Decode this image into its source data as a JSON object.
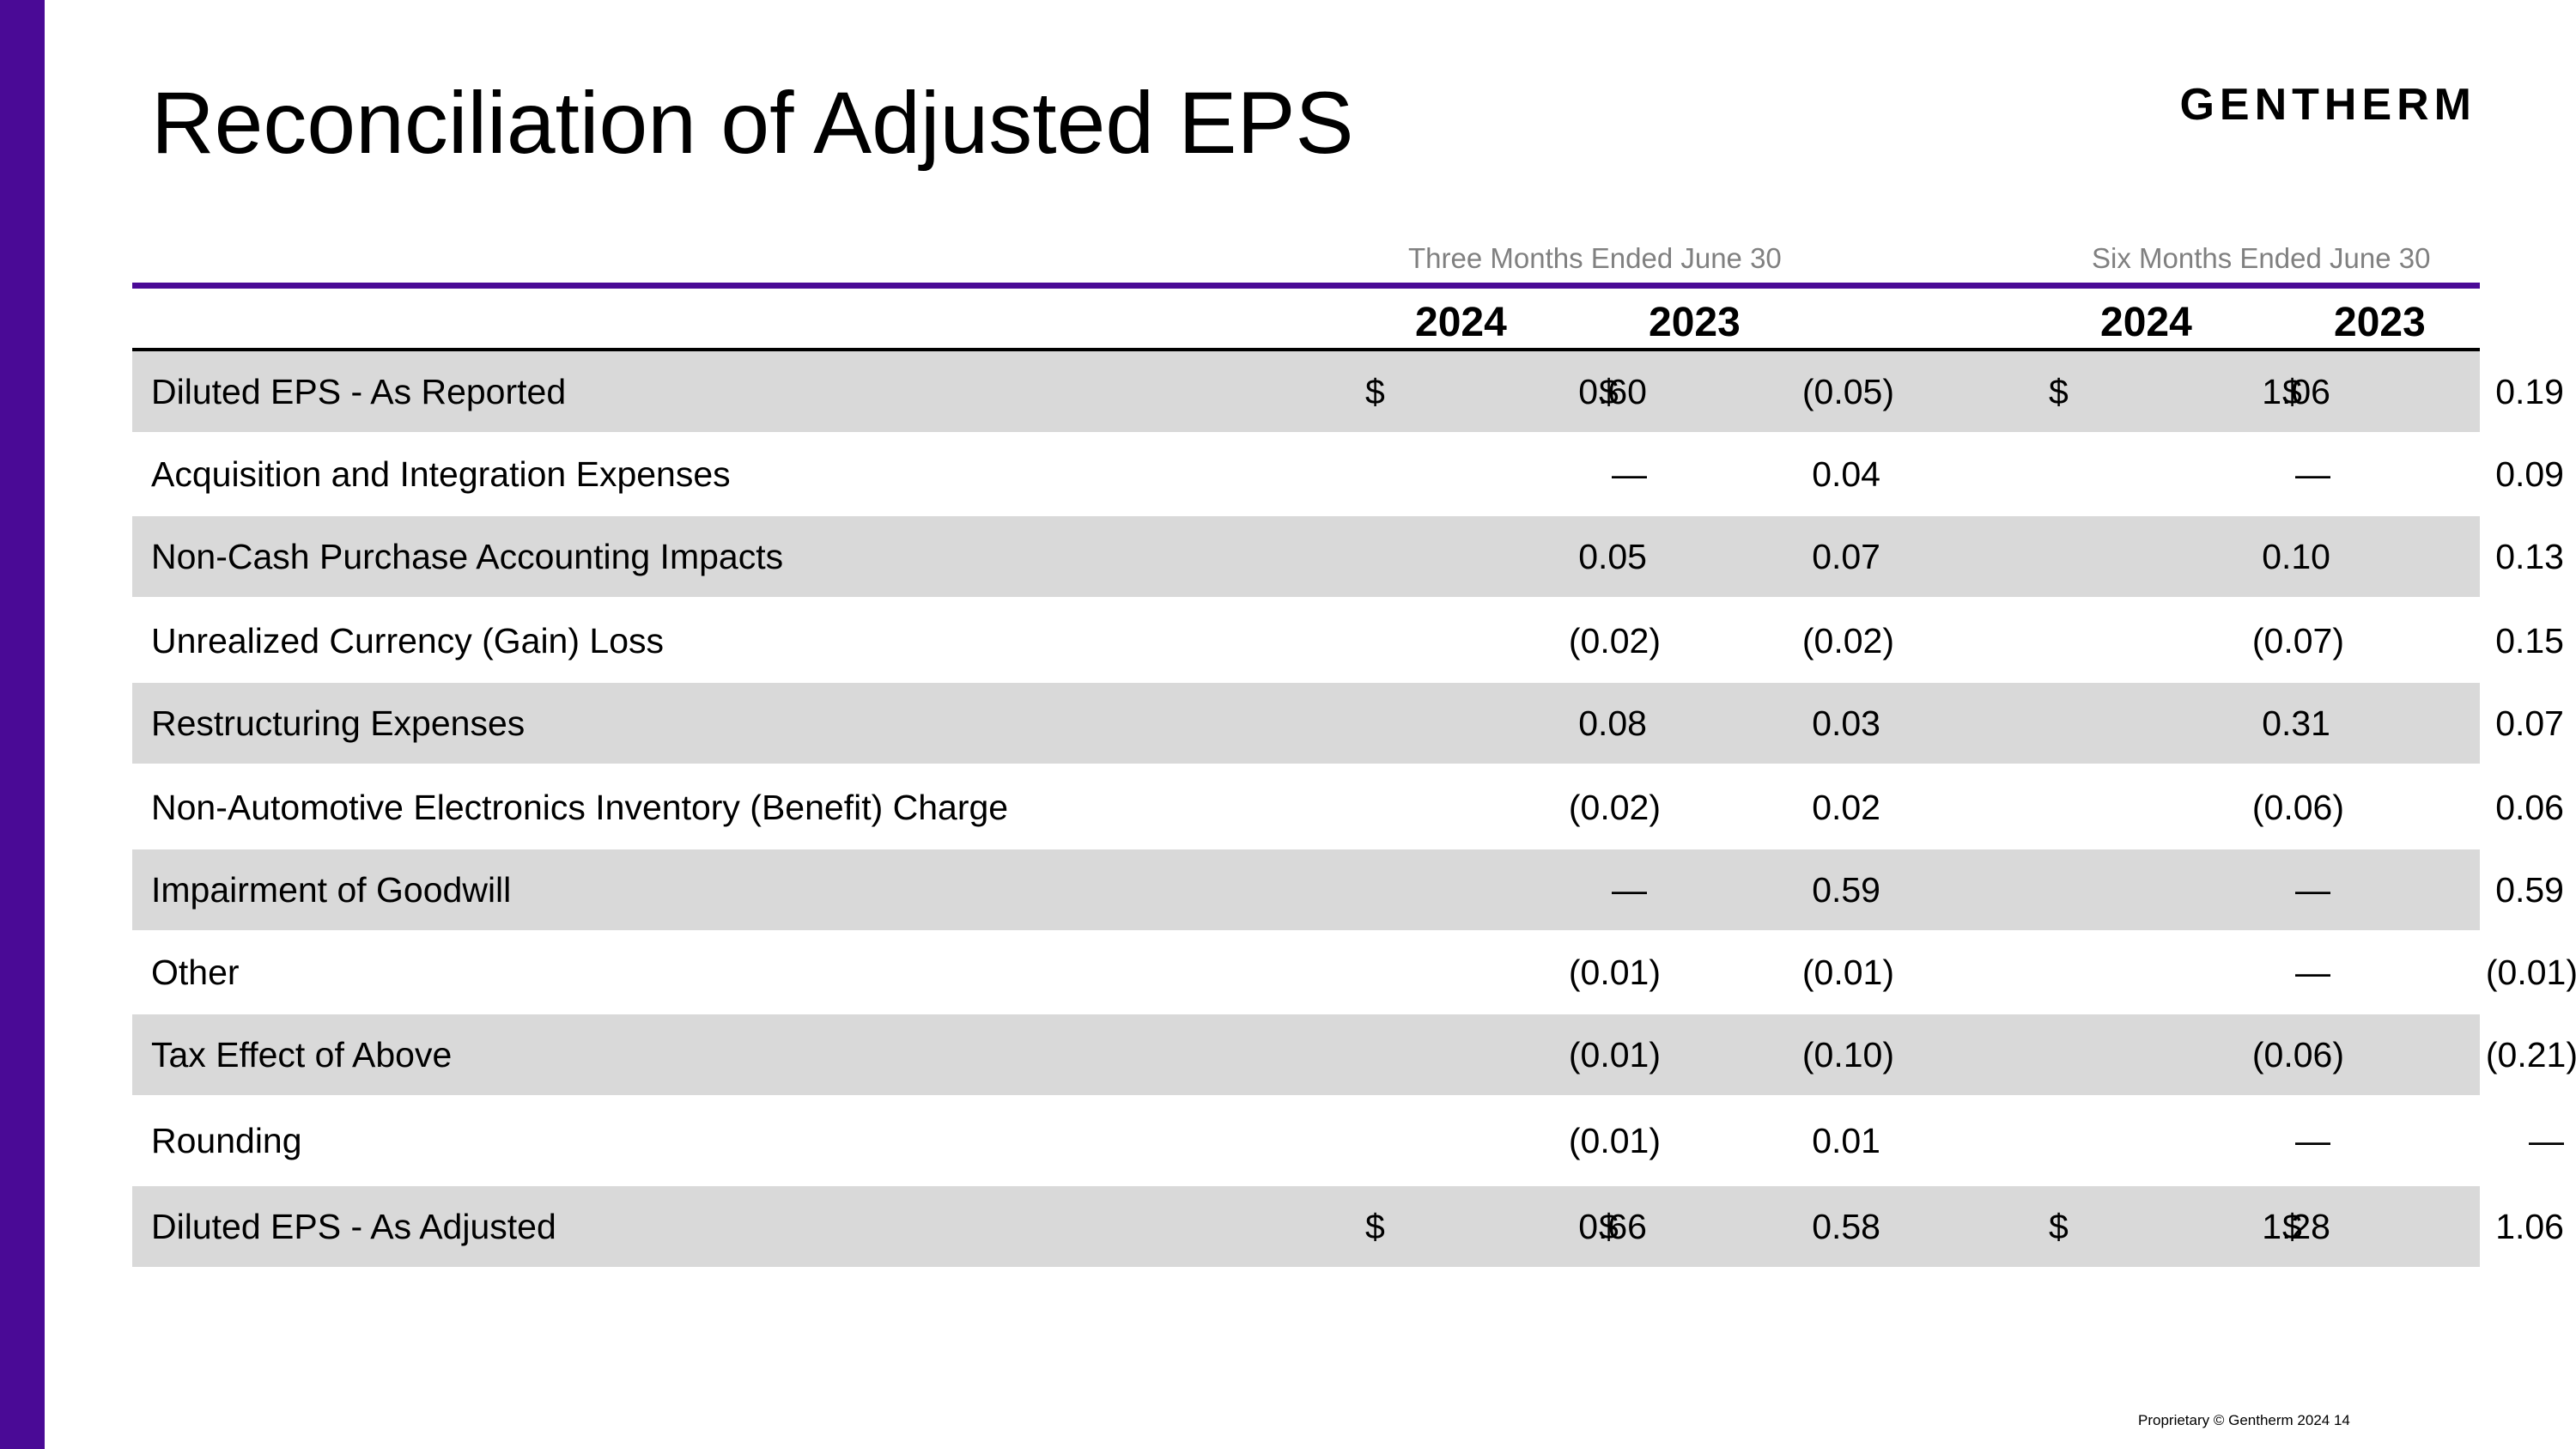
{
  "slide": {
    "title": "Reconciliation of Adjusted EPS",
    "logo_text": "GENTHERM",
    "accent_color": "#4a0a96",
    "stripe_color": "#d9d9d9",
    "footer": "Proprietary © Gentherm 2024   14"
  },
  "table": {
    "period_headers": [
      "Three Months Ended June 30",
      "Six Months Ended June 30"
    ],
    "years": [
      "2024",
      "2023",
      "2024",
      "2023"
    ],
    "rows": [
      {
        "label": "Diluted EPS - As Reported",
        "cur": [
          "$",
          "$",
          "$",
          "$"
        ],
        "values": [
          "0.60",
          "(0.05)",
          "1.06",
          "0.19"
        ]
      },
      {
        "label": "Acquisition and Integration Expenses",
        "cur": [
          "",
          "",
          "",
          ""
        ],
        "values": [
          "—",
          "0.04",
          "—",
          "0.09"
        ]
      },
      {
        "label": "Non-Cash Purchase Accounting Impacts",
        "cur": [
          "",
          "",
          "",
          ""
        ],
        "values": [
          "0.05",
          "0.07",
          "0.10",
          "0.13"
        ]
      },
      {
        "label": "Unrealized Currency (Gain) Loss",
        "cur": [
          "",
          "",
          "",
          ""
        ],
        "values": [
          "(0.02)",
          "(0.02)",
          "(0.07)",
          "0.15"
        ]
      },
      {
        "label": "Restructuring Expenses",
        "cur": [
          "",
          "",
          "",
          ""
        ],
        "values": [
          "0.08",
          "0.03",
          "0.31",
          "0.07"
        ]
      },
      {
        "label": "Non-Automotive Electronics Inventory (Benefit) Charge",
        "cur": [
          "",
          "",
          "",
          ""
        ],
        "values": [
          "(0.02)",
          "0.02",
          "(0.06)",
          "0.06"
        ]
      },
      {
        "label": "Impairment of Goodwill",
        "cur": [
          "",
          "",
          "",
          ""
        ],
        "values": [
          "—",
          "0.59",
          "—",
          "0.59"
        ]
      },
      {
        "label": "Other",
        "cur": [
          "",
          "",
          "",
          ""
        ],
        "values": [
          "(0.01)",
          "(0.01)",
          "—",
          "(0.01)"
        ]
      },
      {
        "label": "Tax Effect of Above",
        "cur": [
          "",
          "",
          "",
          ""
        ],
        "values": [
          "(0.01)",
          "(0.10)",
          "(0.06)",
          "(0.21)"
        ]
      },
      {
        "label": "Rounding",
        "cur": [
          "",
          "",
          "",
          ""
        ],
        "values": [
          "(0.01)",
          "0.01",
          "—",
          "—"
        ]
      },
      {
        "label": "Diluted EPS - As Adjusted",
        "cur": [
          "$",
          "$",
          "$",
          "$"
        ],
        "values": [
          "0.66",
          "0.58",
          "1.28",
          "1.06"
        ]
      }
    ]
  }
}
